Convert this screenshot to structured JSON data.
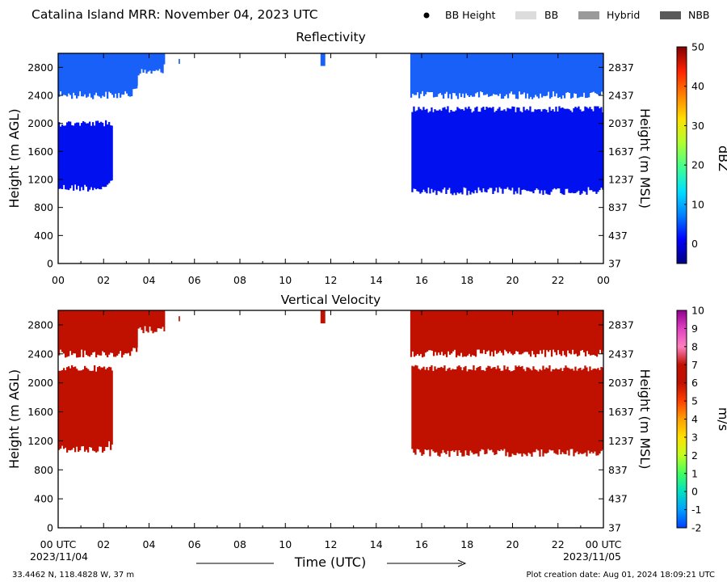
{
  "figure": {
    "title": "Catalina Island MRR:  November 04, 2023 UTC",
    "location": "33.4462 N, 118.4828 W, 37 m",
    "creation": "Plot creation date: Aug 01, 2024 18:09:21 UTC",
    "start_date": "2023/11/04",
    "end_date": "2023/11/05",
    "x_axis_label": "Time (UTC)",
    "legend": [
      {
        "label": "BB Height",
        "kind": "dot",
        "color": "#000000"
      },
      {
        "label": "BB",
        "kind": "box",
        "color": "#dcdcdc"
      },
      {
        "label": "Hybrid",
        "kind": "box",
        "color": "#9a9a9a"
      },
      {
        "label": "NBB",
        "kind": "box",
        "color": "#5a5a5a"
      }
    ]
  },
  "chart_data": [
    {
      "type": "heatmap",
      "title": "Reflectivity",
      "ylabel": "Height (m AGL)",
      "y2label": "Height (m MSL)",
      "colorbar_label": "dBZ",
      "xlim": [
        0,
        24
      ],
      "ylim": [
        0,
        3000
      ],
      "x_ticks": [
        "00",
        "02",
        "04",
        "06",
        "08",
        "10",
        "12",
        "14",
        "16",
        "18",
        "20",
        "22",
        "00"
      ],
      "y_ticks": [
        0,
        400,
        800,
        1200,
        1600,
        2000,
        2400,
        2800
      ],
      "y2_ticks": [
        37,
        437,
        837,
        1237,
        1637,
        2037,
        2437,
        2837
      ],
      "colorbar": {
        "min": -5,
        "max": 50,
        "ticks": [
          0,
          10,
          20,
          30,
          40,
          50
        ],
        "colors": [
          "#000080",
          "#0000ff",
          "#0080ff",
          "#00e0ff",
          "#40ff90",
          "#b0ff30",
          "#ffe000",
          "#ff8000",
          "#ff2000",
          "#800000"
        ]
      },
      "regions": [
        {
          "start": 0.0,
          "end": 2.4,
          "bottom": 1100,
          "top": 2000,
          "color": "#0010ee"
        },
        {
          "start": 0.0,
          "end": 0.3,
          "bottom": 2200,
          "top": 2000,
          "color": "#0010ee"
        },
        {
          "start": 0.0,
          "end": 3.5,
          "bottom": 2420,
          "top": 3000,
          "color": "#1860f8"
        },
        {
          "start": 3.5,
          "end": 4.7,
          "bottom": 2750,
          "top": 3000,
          "color": "#1860f8"
        },
        {
          "start": 5.3,
          "end": 5.35,
          "bottom": 2850,
          "top": 2920,
          "color": "#1860f8"
        },
        {
          "start": 11.55,
          "end": 11.75,
          "bottom": 2820,
          "top": 3000,
          "color": "#1860f8"
        },
        {
          "start": 15.5,
          "end": 24.0,
          "bottom": 2420,
          "top": 3000,
          "color": "#1860f8"
        },
        {
          "start": 15.55,
          "end": 24.0,
          "bottom": 1050,
          "top": 2200,
          "color": "#0010ee"
        }
      ]
    },
    {
      "type": "heatmap",
      "title": "Vertical Velocity",
      "ylabel": "Height (m AGL)",
      "y2label": "Height (m MSL)",
      "colorbar_label": "m/s",
      "xlim": [
        0,
        24
      ],
      "ylim": [
        0,
        3000
      ],
      "x_ticks": [
        "00 UTC",
        "02",
        "04",
        "06",
        "08",
        "10",
        "12",
        "14",
        "16",
        "18",
        "20",
        "22",
        "00 UTC"
      ],
      "y_ticks": [
        0,
        400,
        800,
        1200,
        1600,
        2000,
        2400,
        2800
      ],
      "y2_ticks": [
        37,
        437,
        837,
        1237,
        1637,
        2037,
        2437,
        2837
      ],
      "colorbar": {
        "min": -2,
        "max": 10,
        "ticks": [
          -2,
          -1,
          0,
          1,
          2,
          3,
          4,
          5,
          6,
          7,
          8,
          9,
          10
        ],
        "colors": [
          "#0040ff",
          "#00a0ff",
          "#00e0c0",
          "#40ff60",
          "#c0ff20",
          "#ffe000",
          "#ffa000",
          "#ff4000",
          "#c01000",
          "#c01000",
          "#ff80c0",
          "#e040c0",
          "#900090"
        ]
      },
      "regions": [
        {
          "start": 0.0,
          "end": 2.4,
          "bottom": 1100,
          "top": 2200,
          "color": "#c01000"
        },
        {
          "start": 0.0,
          "end": 3.5,
          "bottom": 2420,
          "top": 3000,
          "color": "#c01000"
        },
        {
          "start": 3.5,
          "end": 4.7,
          "bottom": 2750,
          "top": 3000,
          "color": "#c01000"
        },
        {
          "start": 5.3,
          "end": 5.35,
          "bottom": 2850,
          "top": 2920,
          "color": "#c01000"
        },
        {
          "start": 11.55,
          "end": 11.75,
          "bottom": 2820,
          "top": 3000,
          "color": "#c01000"
        },
        {
          "start": 15.5,
          "end": 24.0,
          "bottom": 2420,
          "top": 3000,
          "color": "#c01000"
        },
        {
          "start": 15.55,
          "end": 24.0,
          "bottom": 1050,
          "top": 2200,
          "color": "#c01000"
        }
      ]
    }
  ]
}
